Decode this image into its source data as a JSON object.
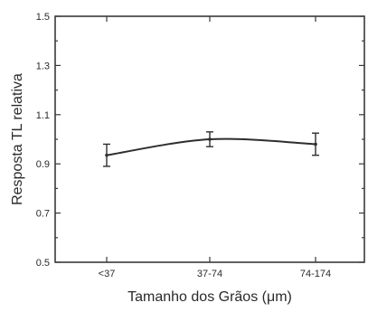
{
  "chart_data": {
    "type": "line",
    "categories": [
      "<37",
      "37-74",
      "74-174"
    ],
    "series": [
      {
        "values": [
          0.935,
          1.0,
          0.98
        ],
        "errors": [
          0.045,
          0.03,
          0.045
        ]
      }
    ],
    "xlabel": "Tamanho dos Grãos (μm)",
    "ylabel": "Resposta TL relativa",
    "ylim": [
      0.5,
      1.5
    ],
    "yticks": [
      0.5,
      0.7,
      0.9,
      1.1,
      1.3,
      1.5
    ],
    "ytick_labels": [
      "0.5",
      "0.7",
      "0.9",
      "1.1",
      "1.3",
      "1.5"
    ],
    "grid": false,
    "curve_style": "smooth"
  }
}
